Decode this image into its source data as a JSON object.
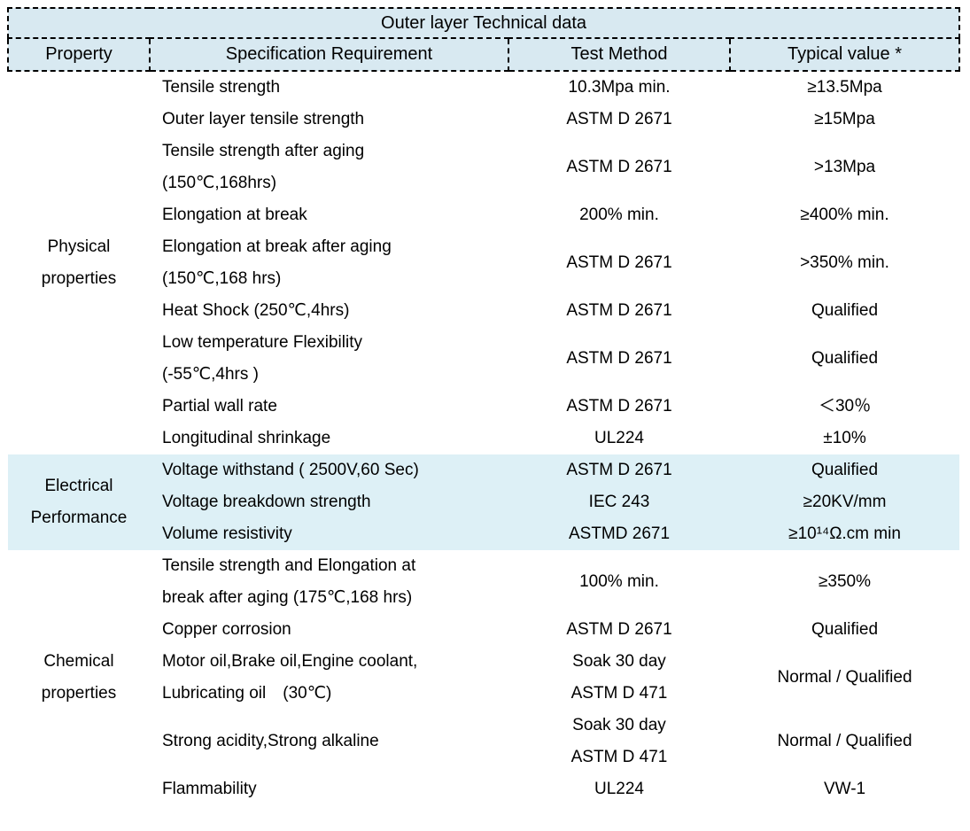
{
  "colors": {
    "header_background": "#d8e9f1",
    "highlight_band_background": "#ddf0f6",
    "border": "#000000",
    "text": "#000000"
  },
  "table": {
    "title": "Outer layer Technical data",
    "columns": [
      "Property",
      "Specification Requirement",
      "Test Method",
      "Typical value *"
    ],
    "groups": [
      {
        "label": "Physical\nproperties",
        "highlighted": false,
        "rows": [
          {
            "spec": "Tensile strength",
            "method": "10.3Mpa min.",
            "value": "≥13.5Mpa"
          },
          {
            "spec": "Outer layer tensile strength",
            "method": "ASTM D 2671",
            "value": "≥15Mpa"
          },
          {
            "spec": "Tensile strength after aging\n(150℃,168hrs)",
            "method": "ASTM D 2671",
            "value": ">13Mpa"
          },
          {
            "spec": "Elongation at break",
            "method": "200% min.",
            "value": "≥400% min."
          },
          {
            "spec": "Elongation at break after aging\n(150℃,168 hrs)",
            "method": "ASTM D 2671",
            "value": ">350% min."
          },
          {
            "spec": "Heat Shock (250℃,4hrs)",
            "method": "ASTM D 2671",
            "value": "Qualified"
          },
          {
            "spec": "Low temperature Flexibility\n(-55℃,4hrs )",
            "method": "ASTM D 2671",
            "value": "Qualified"
          },
          {
            "spec": "Partial wall rate",
            "method": "ASTM D 2671",
            "value": "＜30％"
          },
          {
            "spec": "Longitudinal shrinkage",
            "method": "UL224",
            "value": "±10%"
          }
        ]
      },
      {
        "label": "Electrical\nPerformance",
        "highlighted": true,
        "rows": [
          {
            "spec": "Voltage withstand ( 2500V,60 Sec)",
            "method": "ASTM D 2671",
            "value": "Qualified"
          },
          {
            "spec": "Voltage breakdown strength",
            "method": "IEC 243",
            "value": "≥20KV/mm"
          },
          {
            "spec": "Volume resistivity",
            "method": "ASTMD 2671",
            "value": "≥10¹⁴Ω.cm min"
          }
        ]
      },
      {
        "label": "Chemical\nproperties",
        "highlighted": false,
        "rows": [
          {
            "spec": "Tensile strength and Elongation at\nbreak after aging (175℃,168 hrs)",
            "method": "100% min.",
            "value": "≥350%"
          },
          {
            "spec": "Copper corrosion",
            "method": "ASTM D 2671",
            "value": "Qualified"
          },
          {
            "spec": "Motor oil,Brake oil,Engine coolant,\nLubricating oil (30℃)",
            "method": "Soak 30 day\nASTM D 471",
            "value": "Normal / Qualified"
          },
          {
            "spec": "Strong acidity,Strong alkaline",
            "method": "Soak 30 day\nASTM D 471",
            "value": "Normal / Qualified"
          },
          {
            "spec": "Flammability",
            "method": "UL224",
            "value": "VW-1"
          }
        ]
      }
    ]
  }
}
